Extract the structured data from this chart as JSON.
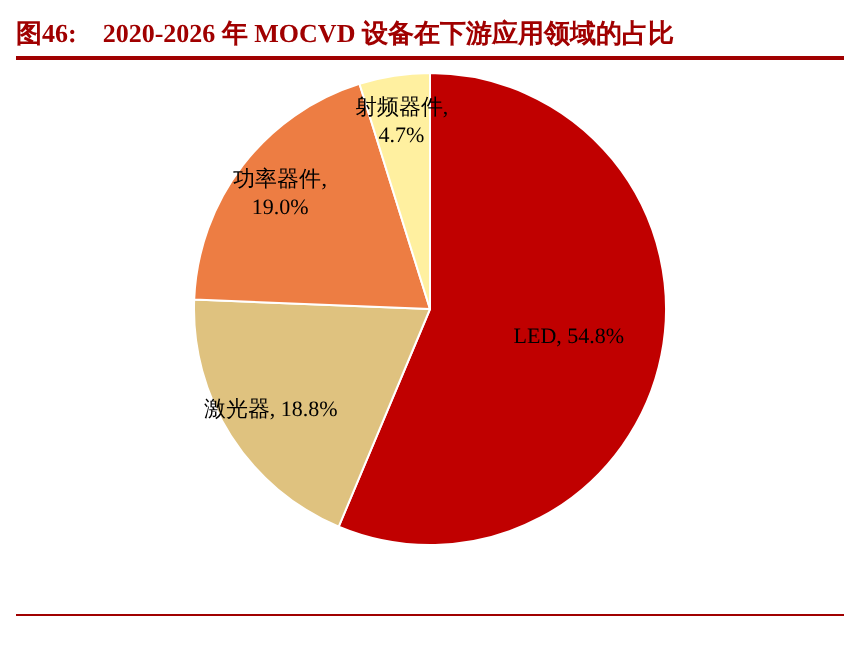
{
  "chart_data": {
    "type": "pie",
    "title": "图46:    2020-2026 年 MOCVD 设备在下游应用领域的占比",
    "categories": [
      "LED",
      "激光器",
      "功率器件",
      "射频器件"
    ],
    "values": [
      54.8,
      18.8,
      19.0,
      4.7
    ],
    "value_labels": [
      ", 54.8%",
      ", 18.8%",
      ",\n19.0%",
      ",\n4.7%"
    ],
    "colors": [
      "#c00000",
      "#dfc27f",
      "#ed7d43",
      "#fff0a0"
    ],
    "legend": false
  }
}
